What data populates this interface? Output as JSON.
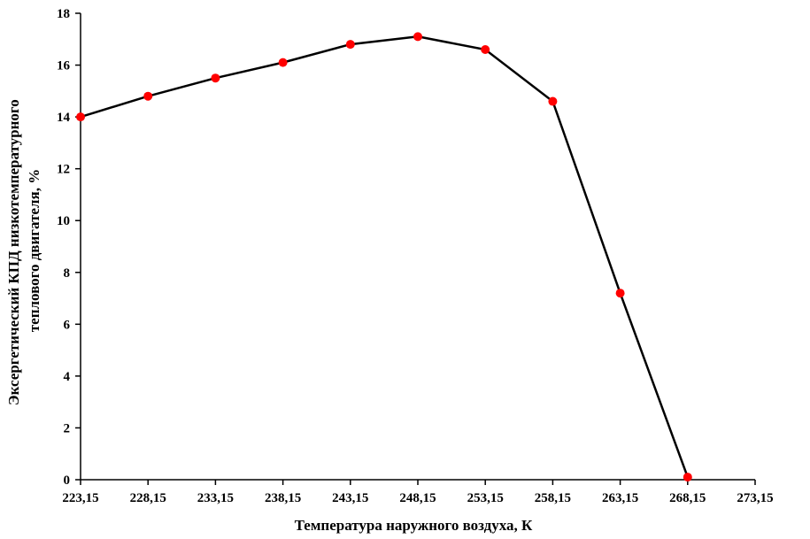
{
  "chart_data": {
    "type": "line",
    "title": "",
    "xlabel": "Температура наружного воздуха, К",
    "ylabel_lines": [
      "Эксергетический КПД низкотемпературного",
      "теплового двигателя, %"
    ],
    "x": [
      "223,15",
      "228,15",
      "233,15",
      "238,15",
      "243,15",
      "248,15",
      "253,15",
      "258,15",
      "263,15",
      "268,15"
    ],
    "x_values": [
      223.15,
      228.15,
      233.15,
      238.15,
      243.15,
      248.15,
      253.15,
      258.15,
      263.15,
      268.15
    ],
    "y": [
      14.0,
      14.8,
      15.5,
      16.1,
      16.8,
      17.1,
      16.6,
      14.6,
      7.2,
      0.1
    ],
    "xlim": [
      223.15,
      273.15
    ],
    "ylim": [
      0,
      18
    ],
    "x_ticks": [
      "223,15",
      "228,15",
      "233,15",
      "238,15",
      "243,15",
      "248,15",
      "253,15",
      "258,15",
      "263,15",
      "268,15",
      "273,15"
    ],
    "y_ticks": [
      "0",
      "2",
      "4",
      "6",
      "8",
      "10",
      "12",
      "14",
      "16",
      "18"
    ],
    "grid": false,
    "legend": "none",
    "line_color": "#000000",
    "marker_color": "#ff0000"
  }
}
